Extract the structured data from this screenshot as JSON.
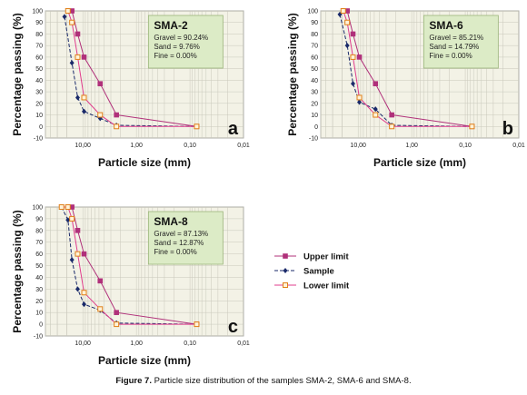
{
  "chart_data": [
    {
      "type": "line",
      "id": "a",
      "panel_letter": "a",
      "xlabel": "Particle size (mm)",
      "ylabel": "Percentage passing (%)",
      "x_scale": "log",
      "x_reversed": true,
      "xlim": [
        50,
        0.01
      ],
      "ylim": [
        -10,
        100
      ],
      "x_tick_labels": [
        "10,00",
        "1,00",
        "0,10",
        "0,01"
      ],
      "y_ticks": [
        -10,
        0,
        10,
        20,
        30,
        40,
        50,
        60,
        70,
        80,
        90,
        100
      ],
      "grid": true,
      "box": {
        "title": "SMA-2",
        "lines": [
          "Gravel = 90.24%",
          "Sand = 9.76%",
          "Fine = 0.00%"
        ]
      },
      "series": [
        {
          "name": "Upper limit",
          "color": "#b0307a",
          "x": [
            19,
            16,
            12.5,
            9.5,
            4.75,
            2.36,
            0.075
          ],
          "y": [
            100,
            100,
            80,
            60,
            37,
            10,
            0
          ]
        },
        {
          "name": "Sample",
          "color": "#1a2a6a",
          "x": [
            22,
            16,
            12.5,
            9.5,
            4.75,
            2.36,
            0.075
          ],
          "y": [
            95,
            55,
            25,
            13,
            7,
            1,
            0
          ]
        },
        {
          "name": "Lower limit",
          "color": "#e03c8c",
          "x": [
            19,
            16,
            12.5,
            9.5,
            4.75,
            2.36,
            0.075
          ],
          "y": [
            100,
            90,
            60,
            25,
            10,
            0,
            0
          ]
        }
      ]
    },
    {
      "type": "line",
      "id": "b",
      "panel_letter": "b",
      "xlabel": "Particle size (mm)",
      "ylabel": "Percentage passing (%)",
      "x_scale": "log",
      "x_reversed": true,
      "xlim": [
        50,
        0.01
      ],
      "ylim": [
        -10,
        100
      ],
      "x_tick_labels": [
        "10,00",
        "1,00",
        "0,10",
        "0,01"
      ],
      "y_ticks": [
        -10,
        0,
        10,
        20,
        30,
        40,
        50,
        60,
        70,
        80,
        90,
        100
      ],
      "grid": true,
      "box": {
        "title": "SMA-6",
        "lines": [
          "Gravel = 85.21%",
          "Sand = 14.79%",
          "Fine = 0.00%"
        ]
      },
      "series": [
        {
          "name": "Upper limit",
          "color": "#b0307a",
          "x": [
            19,
            16,
            12.5,
            9.5,
            4.75,
            2.36,
            0.075
          ],
          "y": [
            100,
            100,
            80,
            60,
            37,
            10,
            0
          ]
        },
        {
          "name": "Sample",
          "color": "#1a2a6a",
          "x": [
            22,
            16,
            12.5,
            9.5,
            4.75,
            2.36,
            0.075
          ],
          "y": [
            97,
            70,
            37,
            21,
            15,
            1,
            0
          ]
        },
        {
          "name": "Lower limit",
          "color": "#e03c8c",
          "x": [
            19,
            16,
            12.5,
            9.5,
            4.75,
            2.36,
            0.075
          ],
          "y": [
            100,
            90,
            60,
            25,
            10,
            0,
            0
          ]
        }
      ]
    },
    {
      "type": "line",
      "id": "c",
      "panel_letter": "c",
      "xlabel": "Particle size (mm)",
      "ylabel": "Percentage passing (%)",
      "x_scale": "log",
      "x_reversed": true,
      "xlim": [
        50,
        0.01
      ],
      "ylim": [
        -10,
        100
      ],
      "x_tick_labels": [
        "10,00",
        "1,00",
        "0,10",
        "0,01"
      ],
      "y_ticks": [
        -10,
        0,
        10,
        20,
        30,
        40,
        50,
        60,
        70,
        80,
        90,
        100
      ],
      "grid": true,
      "box": {
        "title": "SMA-8",
        "lines": [
          "Gravel = 87.13%",
          "Sand = 12.87%",
          "Fine = 0.00%"
        ]
      },
      "series": [
        {
          "name": "Upper limit",
          "color": "#b0307a",
          "x": [
            25,
            19,
            16,
            12.5,
            9.5,
            4.75,
            2.36,
            0.075
          ],
          "y": [
            100,
            100,
            100,
            80,
            60,
            37,
            10,
            0
          ]
        },
        {
          "name": "Sample",
          "color": "#1a2a6a",
          "x": [
            25,
            19,
            16,
            12.5,
            9.5,
            4.75,
            2.36,
            0.075
          ],
          "y": [
            100,
            89,
            55,
            30,
            17,
            12,
            1,
            0
          ]
        },
        {
          "name": "Lower limit",
          "color": "#e03c8c",
          "x": [
            25,
            19,
            16,
            12.5,
            9.5,
            4.75,
            2.36,
            0.075
          ],
          "y": [
            100,
            100,
            90,
            60,
            27,
            13,
            0,
            0
          ]
        }
      ]
    }
  ],
  "legend": {
    "entries": [
      {
        "label": "Upper limit",
        "color": "#b0307a",
        "marker": "square-filled",
        "dash": "solid"
      },
      {
        "label": "Sample",
        "color": "#1a2a6a",
        "marker": "diamond",
        "dash": "dashed"
      },
      {
        "label": "Lower limit",
        "color": "#e03c8c",
        "marker": "square-open",
        "dash": "solid"
      }
    ]
  },
  "caption": {
    "label": "Figure 7.",
    "text": "Particle size distribution of the samples SMA-2, SMA-6 and SMA-8."
  },
  "colors": {
    "plot_bg": "#f3f2e6",
    "grid": "#c9c8bb",
    "box_bg": "#dcebc6",
    "box_border": "#9bb57a"
  }
}
